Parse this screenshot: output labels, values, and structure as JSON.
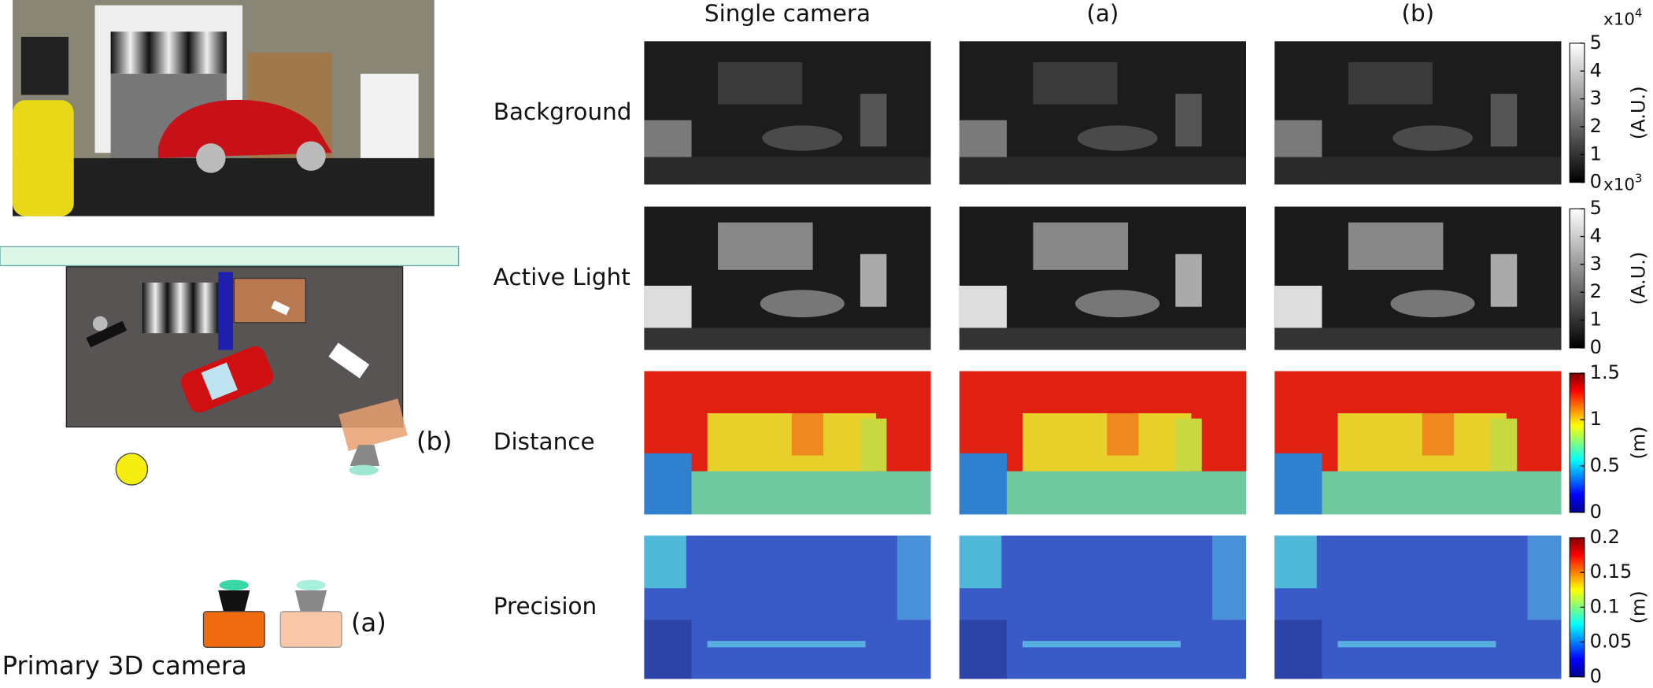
{
  "columns": [
    "Single camera",
    "(a)",
    "(b)"
  ],
  "rows": [
    {
      "label": "Background",
      "colorbar": {
        "ticks": [
          0,
          1,
          2,
          3,
          4,
          5
        ],
        "unit": "(A.U.)",
        "multiplier": {
          "base": "x10",
          "exponent": "4"
        },
        "colormap": "gray"
      }
    },
    {
      "label": "Active Light",
      "colorbar": {
        "ticks": [
          0,
          1,
          2,
          3,
          4,
          5
        ],
        "unit": "(A.U.)",
        "multiplier": {
          "base": "x10",
          "exponent": "3"
        },
        "colormap": "gray"
      }
    },
    {
      "label": "Distance",
      "colorbar": {
        "ticks": [
          0,
          0.5,
          1,
          1.5
        ],
        "unit": "(m)",
        "colormap": "jet"
      }
    },
    {
      "label": "Precision",
      "colorbar": {
        "ticks": [
          0,
          0.05,
          0.1,
          0.15,
          0.2
        ],
        "unit": "(m)",
        "colormap": "jet"
      }
    }
  ],
  "diagram": {
    "label_b": "(b)",
    "label_a": "(a)",
    "camera_label": "Primary 3D camera"
  }
}
